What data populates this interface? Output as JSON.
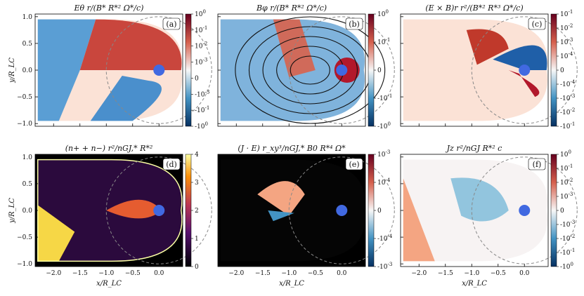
{
  "panels": [
    {
      "title": "Eθ r/(B* R*² Ω*/c)",
      "label": "(a)",
      "cbar_type": "sym",
      "cbar_ticks": [
        "10^0",
        "10^-1",
        "10^-2",
        "10^-3",
        "0",
        "-10^-3",
        "-10^-1",
        "-10^0"
      ]
    },
    {
      "title": "Bφ r/(B* R*² Ω*/c)",
      "label": "(b)",
      "cbar_type": "sym",
      "cbar_ticks": [
        "10^0",
        "10^-1",
        "0",
        "-10^-1",
        "-10^0"
      ]
    },
    {
      "title": "(E × B)r r²/(B*² R*³ Ω*/c)",
      "label": "(c)",
      "cbar_type": "sym",
      "cbar_ticks": [
        "10^-1",
        "10^-2",
        "10^-3",
        "10^-4",
        "0",
        "-10^-4",
        "-10^-3",
        "-10^-2",
        "-10^-1"
      ]
    },
    {
      "title": "(n+ + n−) r²/nGJ,* R*²",
      "label": "(d)",
      "cbar_type": "inferno",
      "cbar_ticks": [
        "4",
        "3",
        "2",
        "1",
        "0"
      ]
    },
    {
      "title": "(J · E) r_xy³/nGJ,* B0 R*⁴ Ω*",
      "label": "(e)",
      "cbar_type": "sym",
      "cbar_ticks": [
        "10^-3",
        "10^-4",
        "0",
        "-10^-4",
        "-10^-3"
      ]
    },
    {
      "title": "Jz r²/nGJ R*² c",
      "label": "(f)",
      "cbar_type": "sym",
      "cbar_ticks": [
        "10^0",
        "10^-1",
        "10^-2",
        "10^-3",
        "0",
        "-10^-3",
        "-10^-2",
        "-10^-1",
        "-10^0"
      ]
    }
  ],
  "axes": {
    "xlabel": "x/R_LC",
    "ylabel": "y/R_LC",
    "xticks": [
      "−2.0",
      "−1.5",
      "−1.0",
      "−0.5",
      "0.0"
    ],
    "yticks": [
      "1.0",
      "0.5",
      "0.0",
      "−0.5",
      "−1.0"
    ]
  },
  "colors": {
    "red": "#b2182b",
    "blue": "#2166ac",
    "star": "#4169e1"
  }
}
